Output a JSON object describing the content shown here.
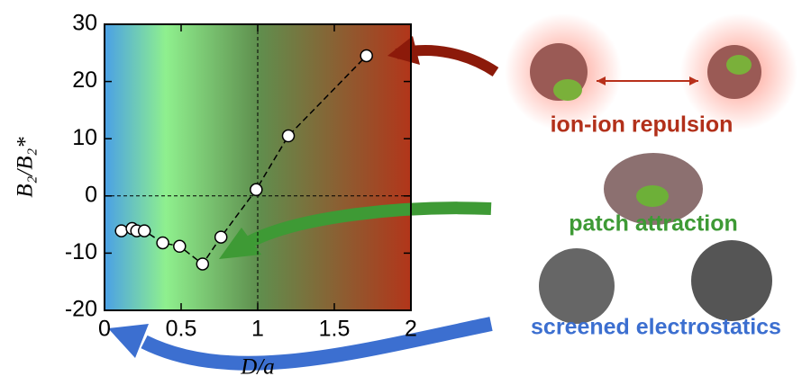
{
  "chart_data": {
    "type": "line",
    "x_label": "D/a",
    "y_label": "B₂/B₂*",
    "x": [
      0.11,
      0.18,
      0.21,
      0.26,
      0.38,
      0.49,
      0.64,
      0.76,
      0.99,
      1.2,
      1.71
    ],
    "series": [
      {
        "color": "#000000",
        "values": [
          -6.1,
          -5.7,
          -6.1,
          -6.1,
          -8.2,
          -8.8,
          -11.9,
          -7.2,
          1.1,
          10.5,
          24.5
        ]
      }
    ],
    "xlim": [
      0,
      2
    ],
    "xticks": [
      0,
      0.5,
      1,
      1.5,
      2
    ],
    "ylim": [
      -20,
      30
    ],
    "yticks": [
      -20,
      -10,
      0,
      10,
      20,
      30
    ],
    "xref": 1,
    "yref": 0,
    "annotations": [
      "ion-ion repulsion",
      "patch attraction",
      "screened electrostatics"
    ]
  }
}
